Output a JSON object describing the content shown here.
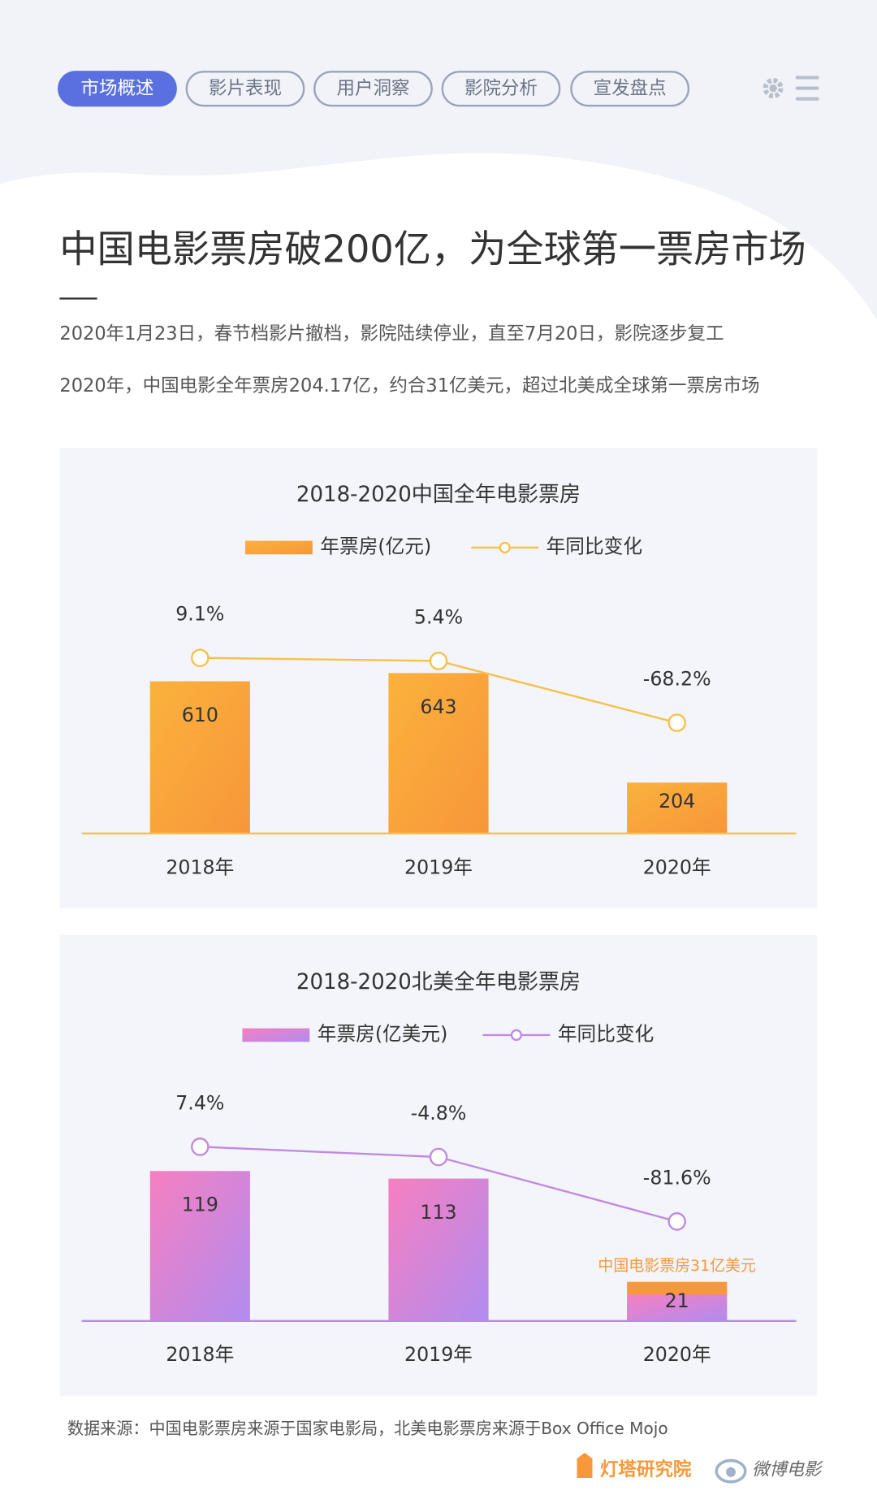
{
  "nav": {
    "tabs": [
      "市场概述",
      "影片表现",
      "用户洞察",
      "影院分析",
      "宣发盘点"
    ],
    "active": 0
  },
  "header": {
    "title": "中国电影票房破200亿，为全球第一票房市场"
  },
  "paragraphs": [
    "2020年1月23日，春节档影片撤档，影院陆续停业，直至7月20日，影院逐步复工",
    "2020年，中国电影全年票房204.17亿，约合31亿美元，超过北美成全球第一票房市场"
  ],
  "chart_data": [
    {
      "type": "bar",
      "title": "2018-2020中国全年电影票房",
      "categories": [
        "2018年",
        "2019年",
        "2020年"
      ],
      "series": [
        {
          "name": "年票房(亿元)",
          "color": [
            "#fbb23c",
            "#f7963a"
          ],
          "values": [
            610,
            643,
            204
          ]
        },
        {
          "name": "年同比变化",
          "type": "line",
          "axis": "y2",
          "color": "#f6c14a",
          "values": [
            9.1,
            5.4,
            -68.2
          ],
          "value_labels": [
            "9.1%",
            "5.4%",
            "-68.2%"
          ]
        }
      ],
      "ylim": [
        0,
        1010
      ],
      "y2lim": [
        -200,
        100
      ],
      "axis_color": "#f6c14a"
    },
    {
      "type": "bar",
      "title": "2018-2020北美全年电影票房",
      "categories": [
        "2018年",
        "2019年",
        "2020年"
      ],
      "series": [
        {
          "name": "年票房(亿美元)",
          "color": [
            "#f77fc0",
            "#b08cf0"
          ],
          "values": [
            119,
            113,
            21
          ]
        },
        {
          "name": "年同比变化",
          "type": "line",
          "axis": "y2",
          "color": "#c08ae0",
          "values": [
            7.4,
            -4.8,
            -81.6
          ],
          "value_labels": [
            "7.4%",
            "-4.8%",
            "-81.6%"
          ]
        }
      ],
      "annotation": {
        "text": "中国电影票房31亿美元",
        "category": 2,
        "value": 31,
        "color": "#f7983a"
      },
      "ylim": [
        0,
        200
      ],
      "y2lim": [
        -200,
        100
      ],
      "axis_color": "#b68ce6"
    }
  ],
  "source": "数据来源：中国电影票房来源于国家电影局，北美电影票房来源于Box Office Mojo",
  "logos": [
    "灯塔研究院",
    "微博电影"
  ]
}
